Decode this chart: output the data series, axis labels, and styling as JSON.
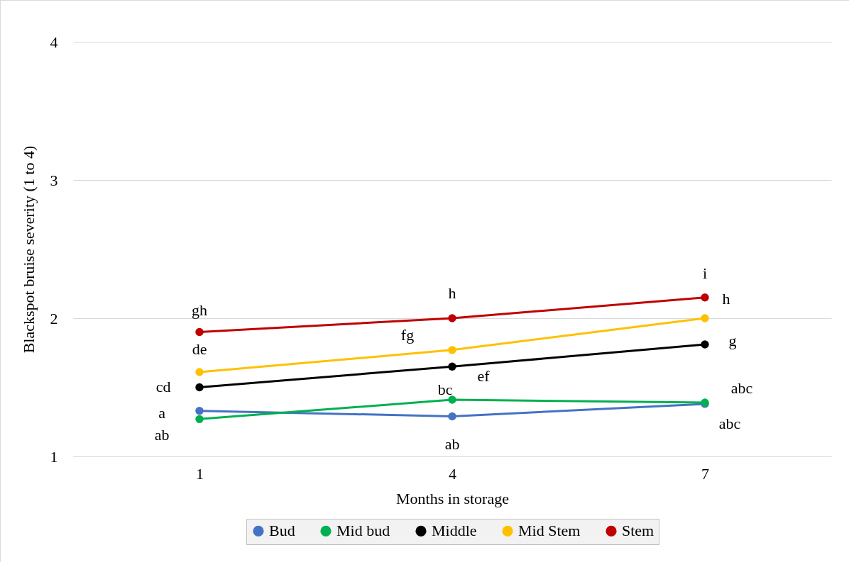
{
  "chart_data": {
    "type": "line",
    "xlabel": "Months in storage",
    "ylabel": "Blackspot bruise severity (1 to 4)",
    "categories": [
      "1",
      "4",
      "7"
    ],
    "ylim": [
      1,
      4
    ],
    "yticks": [
      1,
      2,
      3,
      4
    ],
    "grid": "y",
    "legend": "bottom",
    "marker": "circle",
    "line_style": "solid",
    "series": [
      {
        "name": "Bud",
        "color": "#4472c4",
        "values": [
          1.33,
          1.29,
          1.38
        ]
      },
      {
        "name": "Mid bud",
        "color": "#00b050",
        "values": [
          1.27,
          1.41,
          1.39
        ]
      },
      {
        "name": "Middle",
        "color": "#000000",
        "values": [
          1.5,
          1.65,
          1.81
        ]
      },
      {
        "name": "Mid Stem",
        "color": "#ffc000",
        "values": [
          1.61,
          1.77,
          2.0
        ]
      },
      {
        "name": "Stem",
        "color": "#c00000",
        "values": [
          1.9,
          2.0,
          2.15
        ]
      }
    ],
    "annotations": [
      {
        "text": "a",
        "x": "1",
        "y": 1.33
      },
      {
        "text": "ab",
        "x": "4",
        "y": 1.29
      },
      {
        "text": "abc",
        "x": "7",
        "y": 1.38
      },
      {
        "text": "ab",
        "x": "1",
        "y": 1.27
      },
      {
        "text": "bc",
        "x": "4",
        "y": 1.41
      },
      {
        "text": "abc",
        "x": "7",
        "y": 1.39
      },
      {
        "text": "cd",
        "x": "1",
        "y": 1.5
      },
      {
        "text": "ef",
        "x": "4",
        "y": 1.65
      },
      {
        "text": "g",
        "x": "7",
        "y": 1.81
      },
      {
        "text": "de",
        "x": "1",
        "y": 1.61
      },
      {
        "text": "fg",
        "x": "4",
        "y": 1.77
      },
      {
        "text": "h",
        "x": "7",
        "y": 2.0
      },
      {
        "text": "gh",
        "x": "1",
        "y": 1.9
      },
      {
        "text": "h",
        "x": "4",
        "y": 2.0
      },
      {
        "text": "i",
        "x": "7",
        "y": 2.15
      }
    ]
  }
}
